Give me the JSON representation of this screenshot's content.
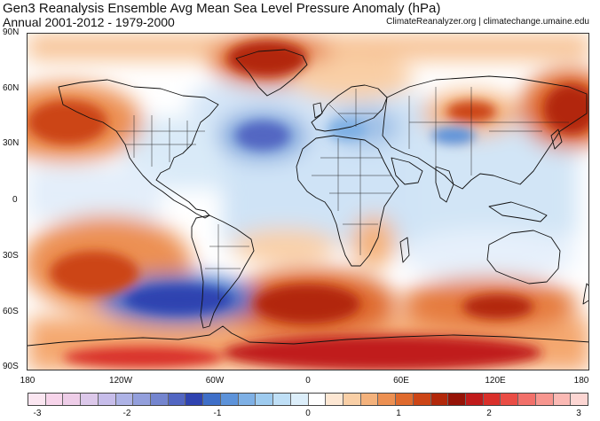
{
  "title": "Gen3 Reanalysis Ensemble Avg Mean Sea Level Pressure Anomaly (hPa)",
  "subtitle": "Annual 2001-2012 - 1979-2000",
  "credit": "ClimateReanalyzer.org | climatechange.umaine.edu",
  "lat_labels": [
    "90N",
    "60N",
    "30N",
    "0",
    "30S",
    "60S",
    "90S"
  ],
  "lon_labels": [
    "180",
    "120W",
    "60W",
    "0",
    "60E",
    "120E",
    "180"
  ],
  "colorbar": {
    "tick_labels": [
      "-3",
      "-2",
      "-1",
      "0",
      "1",
      "2",
      "3"
    ],
    "min": -3,
    "max": 3,
    "step": 0.25,
    "colors": [
      "#fbe6f1",
      "#f7d4ea",
      "#eecde8",
      "#dcc8ea",
      "#c7bdea",
      "#aeb3e6",
      "#939fdc",
      "#7485cf",
      "#5266c2",
      "#2f43b0",
      "#3f6fc8",
      "#5d93da",
      "#7eb0e5",
      "#9ecbef",
      "#bfdff6",
      "#dceefa",
      "#ffffff",
      "#fde7d3",
      "#f9cfa6",
      "#f4b27c",
      "#ec9052",
      "#df6a2d",
      "#cc4516",
      "#b2280b",
      "#961307",
      "#c01b1b",
      "#d9302b",
      "#ea4d45",
      "#f2706a",
      "#f7968f",
      "#fbb9b4",
      "#fdd6d3"
    ]
  },
  "map_data": {
    "variable": "Mean Sea Level Pressure Anomaly",
    "units": "hPa",
    "base_period": "1979-2000",
    "comparison_period": "2001-2012",
    "extent": {
      "lon": [
        -180,
        180
      ],
      "lat": [
        -90,
        90
      ]
    },
    "anomaly_features": [
      {
        "region": "Greenland",
        "lon": -40,
        "lat": 73,
        "value": 1.6
      },
      {
        "region": "North Pacific (east)",
        "lon": -160,
        "lat": 45,
        "value": 1.5
      },
      {
        "region": "North Pacific (west)",
        "lon": 175,
        "lat": 48,
        "value": 1.7
      },
      {
        "region": "North Atlantic (Azores)",
        "lon": -45,
        "lat": 33,
        "value": -1.2
      },
      {
        "region": "Mediterranean",
        "lon": 15,
        "lat": 38,
        "value": -0.9
      },
      {
        "region": "Tibet",
        "lon": 90,
        "lat": 33,
        "value": -1.0
      },
      {
        "region": "Central Asia",
        "lon": 95,
        "lat": 48,
        "value": 1.2
      },
      {
        "region": "Arctic Eurasia",
        "lon": 30,
        "lat": 65,
        "value": 0.6
      },
      {
        "region": "South Pacific",
        "lon": -150,
        "lat": -40,
        "value": 1.6
      },
      {
        "region": "Amundsen-Bellingshausen Sea",
        "lon": -90,
        "lat": -58,
        "value": -2.2
      },
      {
        "region": "South Atlantic",
        "lon": -5,
        "lat": -55,
        "value": 1.9
      },
      {
        "region": "Southern Indian Ocean",
        "lon": 110,
        "lat": -55,
        "value": 1.7
      },
      {
        "region": "Antarctica",
        "lon": 60,
        "lat": -78,
        "value": 2.4
      }
    ]
  }
}
